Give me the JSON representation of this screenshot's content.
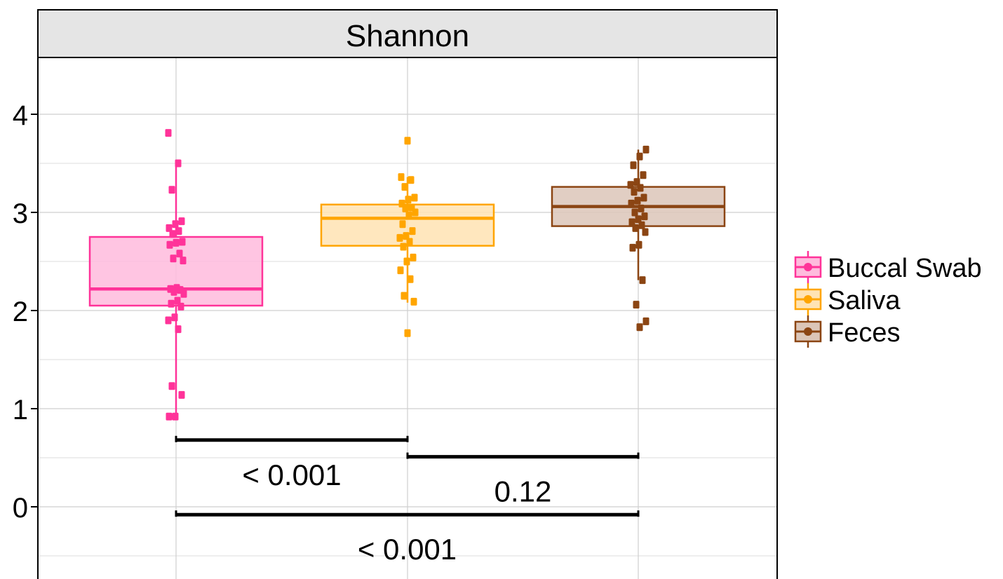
{
  "chart_data": {
    "type": "box",
    "facet_title": "Shannon",
    "xlabel": "",
    "ylabel": "",
    "ylim": [
      -0.55,
      4.55
    ],
    "yticks": [
      "0",
      "1",
      "2",
      "3",
      "4"
    ],
    "y_minor_gridlines": [
      -0.5,
      0.5,
      1.5,
      2.5,
      3.5
    ],
    "grid": true,
    "legend_position": "right",
    "series": [
      {
        "name": "Buccal Swab",
        "color": "#FF3399",
        "fill": "#FFBBDD",
        "box": {
          "q1": 2.05,
          "median": 2.22,
          "q3": 2.75,
          "whisker_low": 0.92,
          "whisker_high": 3.49
        },
        "points": [
          3.81,
          3.5,
          3.23,
          2.91,
          2.88,
          2.84,
          2.81,
          2.78,
          2.7,
          2.69,
          2.67,
          2.58,
          2.53,
          2.51,
          2.23,
          2.22,
          2.21,
          2.19,
          2.17,
          2.1,
          2.07,
          2.04,
          1.93,
          1.9,
          1.81,
          1.23,
          1.14,
          0.92,
          0.92
        ]
      },
      {
        "name": "Saliva",
        "color": "#FFA500",
        "fill": "#FFE3B3",
        "box": {
          "q1": 2.66,
          "median": 2.94,
          "q3": 3.08,
          "whisker_low": 2.08,
          "whisker_high": 3.36
        },
        "points": [
          3.73,
          3.36,
          3.33,
          3.26,
          3.15,
          3.13,
          3.09,
          3.05,
          3.04,
          3.0,
          2.97,
          2.88,
          2.81,
          2.76,
          2.74,
          2.7,
          2.65,
          2.54,
          2.5,
          2.41,
          2.32,
          2.15,
          2.09,
          1.77
        ]
      },
      {
        "name": "Feces",
        "color": "#8B4513",
        "fill": "#DCC6B8",
        "box": {
          "q1": 2.86,
          "median": 3.06,
          "q3": 3.26,
          "whisker_low": 2.31,
          "whisker_high": 3.64
        },
        "points": [
          3.64,
          3.57,
          3.48,
          3.38,
          3.31,
          3.28,
          3.25,
          3.21,
          3.15,
          3.12,
          3.09,
          3.04,
          3.0,
          2.96,
          2.93,
          2.9,
          2.87,
          2.84,
          2.8,
          2.67,
          2.64,
          2.31,
          2.06,
          1.89,
          1.83
        ]
      }
    ],
    "comparisons": [
      {
        "from": "Buccal Swab",
        "to": "Saliva",
        "y": 0.68,
        "label": "< 0.001"
      },
      {
        "from": "Saliva",
        "to": "Feces",
        "y": 0.51,
        "label": "0.12"
      },
      {
        "from": "Buccal Swab",
        "to": "Feces",
        "y": -0.08,
        "label": "< 0.001"
      }
    ]
  }
}
